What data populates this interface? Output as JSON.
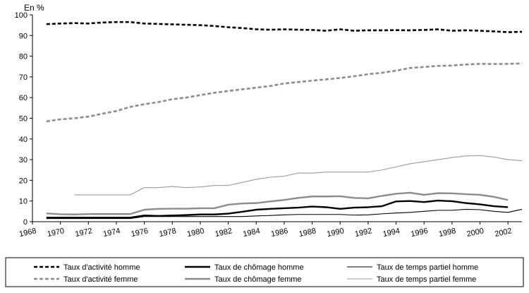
{
  "chart_data": {
    "type": "line",
    "unit_label": "En %",
    "ylim": [
      0,
      100
    ],
    "y_ticks": [
      0,
      10,
      20,
      30,
      40,
      50,
      60,
      70,
      80,
      90,
      100
    ],
    "xlim": [
      1968,
      2003
    ],
    "x_ticks": [
      1968,
      1970,
      1972,
      1974,
      1976,
      1978,
      1980,
      1982,
      1984,
      1986,
      1988,
      1990,
      1992,
      1994,
      1996,
      1998,
      2000,
      2002
    ],
    "grid": false,
    "legend_position": "bottom",
    "series": [
      {
        "name": "Taux d'activité homme",
        "color": "#000000",
        "style": "dashed-bold",
        "points": [
          [
            1969,
            95.5
          ],
          [
            1970,
            95.8
          ],
          [
            1971,
            96
          ],
          [
            1972,
            95.8
          ],
          [
            1973,
            96.3
          ],
          [
            1974,
            96.5
          ],
          [
            1975,
            96.5
          ],
          [
            1976,
            95.8
          ],
          [
            1977,
            95.6
          ],
          [
            1978,
            95.4
          ],
          [
            1979,
            95.2
          ],
          [
            1980,
            95
          ],
          [
            1981,
            94.6
          ],
          [
            1982,
            94
          ],
          [
            1983,
            93.6
          ],
          [
            1984,
            93
          ],
          [
            1985,
            92.8
          ],
          [
            1986,
            93
          ],
          [
            1987,
            92.8
          ],
          [
            1988,
            92.7
          ],
          [
            1989,
            92.3
          ],
          [
            1990,
            93
          ],
          [
            1991,
            92.3
          ],
          [
            1992,
            92.5
          ],
          [
            1993,
            92.5
          ],
          [
            1994,
            92.6
          ],
          [
            1995,
            92.5
          ],
          [
            1996,
            92.7
          ],
          [
            1997,
            93
          ],
          [
            1998,
            92.3
          ],
          [
            1999,
            92.5
          ],
          [
            2000,
            92.3
          ],
          [
            2001,
            92
          ],
          [
            2002,
            91.6
          ],
          [
            2003,
            91.8
          ]
        ]
      },
      {
        "name": "Taux d'activité femme",
        "color": "#8c8c8c",
        "style": "dashed-bold",
        "points": [
          [
            1969,
            48.5
          ],
          [
            1970,
            49.5
          ],
          [
            1971,
            50
          ],
          [
            1972,
            50.8
          ],
          [
            1973,
            52.2
          ],
          [
            1974,
            53.5
          ],
          [
            1975,
            55.5
          ],
          [
            1976,
            56.8
          ],
          [
            1977,
            57.8
          ],
          [
            1978,
            59.2
          ],
          [
            1979,
            60
          ],
          [
            1980,
            61.2
          ],
          [
            1981,
            62.3
          ],
          [
            1982,
            63.2
          ],
          [
            1983,
            64
          ],
          [
            1984,
            64.8
          ],
          [
            1985,
            65.6
          ],
          [
            1986,
            66.8
          ],
          [
            1987,
            67.5
          ],
          [
            1988,
            68.2
          ],
          [
            1989,
            68.8
          ],
          [
            1990,
            69.5
          ],
          [
            1991,
            70.3
          ],
          [
            1992,
            71.3
          ],
          [
            1993,
            72
          ],
          [
            1994,
            73
          ],
          [
            1995,
            74.3
          ],
          [
            1996,
            74.8
          ],
          [
            1997,
            75.3
          ],
          [
            1998,
            75.5
          ],
          [
            1999,
            76
          ],
          [
            2000,
            76.3
          ],
          [
            2001,
            76.2
          ],
          [
            2002,
            76.3
          ],
          [
            2003,
            76.5
          ]
        ]
      },
      {
        "name": "Taux de chômage homme",
        "color": "#000000",
        "style": "solid-bold",
        "points": [
          [
            1969,
            2
          ],
          [
            1970,
            2
          ],
          [
            1971,
            2
          ],
          [
            1972,
            2
          ],
          [
            1973,
            2
          ],
          [
            1974,
            2
          ],
          [
            1975,
            2
          ],
          [
            1976,
            3
          ],
          [
            1977,
            2.8
          ],
          [
            1978,
            3
          ],
          [
            1979,
            3.2
          ],
          [
            1980,
            3.5
          ],
          [
            1981,
            3.5
          ],
          [
            1982,
            3.9
          ],
          [
            1983,
            4.8
          ],
          [
            1984,
            5.8
          ],
          [
            1985,
            6.2
          ],
          [
            1986,
            6.5
          ],
          [
            1987,
            6.8
          ],
          [
            1988,
            7.3
          ],
          [
            1989,
            7
          ],
          [
            1990,
            6.2
          ],
          [
            1991,
            6.8
          ],
          [
            1992,
            7
          ],
          [
            1993,
            7.5
          ],
          [
            1994,
            9.8
          ],
          [
            1995,
            10
          ],
          [
            1996,
            9.5
          ],
          [
            1997,
            10.2
          ],
          [
            1998,
            9.9
          ],
          [
            1999,
            9
          ],
          [
            2000,
            8.4
          ],
          [
            2001,
            7.5
          ],
          [
            2002,
            7
          ]
        ]
      },
      {
        "name": "Taux de chômage femme",
        "color": "#8c8c8c",
        "style": "solid-bold",
        "points": [
          [
            1969,
            4
          ],
          [
            1970,
            3.6
          ],
          [
            1971,
            3.5
          ],
          [
            1972,
            3.7
          ],
          [
            1973,
            3.7
          ],
          [
            1974,
            3.7
          ],
          [
            1975,
            3.7
          ],
          [
            1976,
            5.8
          ],
          [
            1977,
            6.2
          ],
          [
            1978,
            6.3
          ],
          [
            1979,
            6.3
          ],
          [
            1980,
            6.5
          ],
          [
            1981,
            6.5
          ],
          [
            1982,
            8.2
          ],
          [
            1983,
            8.8
          ],
          [
            1984,
            9
          ],
          [
            1985,
            9.8
          ],
          [
            1986,
            10.5
          ],
          [
            1987,
            11.5
          ],
          [
            1988,
            12.2
          ],
          [
            1989,
            12.2
          ],
          [
            1990,
            12.3
          ],
          [
            1991,
            11.5
          ],
          [
            1992,
            11.3
          ],
          [
            1993,
            12.5
          ],
          [
            1994,
            13.5
          ],
          [
            1995,
            14
          ],
          [
            1996,
            13
          ],
          [
            1997,
            13.8
          ],
          [
            1998,
            13.7
          ],
          [
            1999,
            13.3
          ],
          [
            2000,
            13
          ],
          [
            2001,
            12
          ],
          [
            2002,
            10.5
          ]
        ]
      },
      {
        "name": "Taux de temps partiel homme",
        "color": "#000000",
        "style": "solid-thin",
        "points": [
          [
            1969,
            1.5
          ],
          [
            1970,
            1.5
          ],
          [
            1971,
            1.5
          ],
          [
            1972,
            1.5
          ],
          [
            1973,
            1.5
          ],
          [
            1974,
            1.5
          ],
          [
            1975,
            1.5
          ],
          [
            1976,
            2.5
          ],
          [
            1977,
            2.5
          ],
          [
            1978,
            2.5
          ],
          [
            1979,
            2.5
          ],
          [
            1980,
            2.5
          ],
          [
            1981,
            2.5
          ],
          [
            1982,
            2.5
          ],
          [
            1983,
            2.5
          ],
          [
            1984,
            2.8
          ],
          [
            1985,
            3
          ],
          [
            1986,
            3.3
          ],
          [
            1987,
            3.5
          ],
          [
            1988,
            3.5
          ],
          [
            1989,
            3.5
          ],
          [
            1990,
            3.5
          ],
          [
            1991,
            3.2
          ],
          [
            1992,
            3.3
          ],
          [
            1993,
            3.8
          ],
          [
            1994,
            4.2
          ],
          [
            1995,
            4.5
          ],
          [
            1996,
            5
          ],
          [
            1997,
            5.5
          ],
          [
            1998,
            5.5
          ],
          [
            1999,
            6
          ],
          [
            2000,
            5.8
          ],
          [
            2001,
            5
          ],
          [
            2002,
            4.5
          ],
          [
            2003,
            6
          ]
        ]
      },
      {
        "name": "Taux de temps partiel femme",
        "color": "#9a9a9a",
        "style": "solid-thin",
        "points": [
          [
            1971,
            13
          ],
          [
            1972,
            13
          ],
          [
            1973,
            13
          ],
          [
            1974,
            13
          ],
          [
            1975,
            13
          ],
          [
            1976,
            16.5
          ],
          [
            1977,
            16.5
          ],
          [
            1978,
            17
          ],
          [
            1979,
            16.5
          ],
          [
            1980,
            16.8
          ],
          [
            1981,
            17.5
          ],
          [
            1982,
            17.5
          ],
          [
            1983,
            19
          ],
          [
            1984,
            20.5
          ],
          [
            1985,
            21.5
          ],
          [
            1986,
            22
          ],
          [
            1987,
            23.5
          ],
          [
            1988,
            23.5
          ],
          [
            1989,
            24
          ],
          [
            1990,
            24
          ],
          [
            1991,
            24
          ],
          [
            1992,
            24
          ],
          [
            1993,
            25
          ],
          [
            1994,
            26.5
          ],
          [
            1995,
            28
          ],
          [
            1996,
            29
          ],
          [
            1997,
            30
          ],
          [
            1998,
            31
          ],
          [
            1999,
            31.8
          ],
          [
            2000,
            32
          ],
          [
            2001,
            31.2
          ],
          [
            2002,
            30
          ],
          [
            2003,
            29.5
          ]
        ]
      }
    ]
  }
}
